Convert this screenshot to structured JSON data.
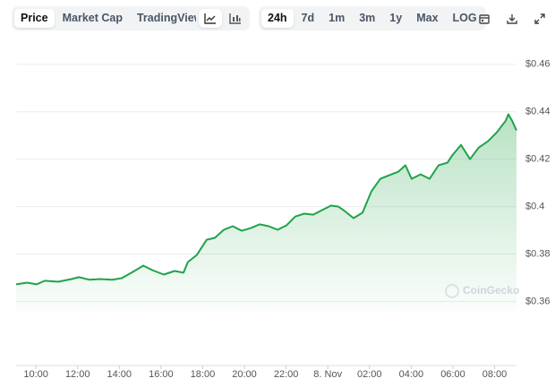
{
  "toolbar": {
    "views": [
      "Price",
      "Market Cap",
      "TradingView"
    ],
    "ranges": [
      "24h",
      "7d",
      "1m",
      "3m",
      "1y",
      "Max",
      "LOG"
    ]
  },
  "chart_data": {
    "type": "area",
    "watermark": "CoinGecko",
    "color": "#1fa34a",
    "x": [
      9.05,
      9.57,
      10.04,
      10.42,
      11.07,
      11.71,
      12.06,
      12.57,
      13.09,
      13.64,
      14.12,
      14.72,
      15.15,
      15.58,
      16.13,
      16.65,
      17.08,
      17.29,
      17.72,
      18.19,
      18.58,
      19.01,
      19.44,
      19.87,
      20.3,
      20.73,
      21.16,
      21.59,
      22.02,
      22.44,
      22.87,
      23.3,
      23.73,
      24.16,
      24.5,
      24.81,
      25.23,
      25.66,
      26.09,
      26.52,
      26.95,
      27.38,
      27.72,
      28.02,
      28.45,
      28.88,
      29.31,
      29.74,
      29.96,
      30.39,
      30.82,
      31.24,
      31.67,
      32.1,
      32.53,
      32.66,
      32.84,
      33.05
    ],
    "values": [
      0.3672,
      0.3679,
      0.3672,
      0.3687,
      0.3683,
      0.3694,
      0.3702,
      0.3691,
      0.3694,
      0.3691,
      0.3698,
      0.3728,
      0.3751,
      0.3732,
      0.3713,
      0.3728,
      0.3721,
      0.3766,
      0.3796,
      0.386,
      0.3868,
      0.3902,
      0.3917,
      0.3898,
      0.3909,
      0.3925,
      0.3917,
      0.3902,
      0.3921,
      0.3958,
      0.397,
      0.3966,
      0.3985,
      0.4004,
      0.4,
      0.3981,
      0.3951,
      0.3974,
      0.4064,
      0.4117,
      0.4132,
      0.4147,
      0.4174,
      0.4117,
      0.4136,
      0.4117,
      0.4174,
      0.4185,
      0.4215,
      0.426,
      0.42,
      0.4249,
      0.4275,
      0.4313,
      0.4362,
      0.4389,
      0.4362,
      0.4321
    ],
    "xlim": [
      9.05,
      33.05
    ],
    "ylim": [
      0.356,
      0.469
    ],
    "xticks": [
      {
        "value": 10,
        "label": "10:00"
      },
      {
        "value": 12,
        "label": "12:00"
      },
      {
        "value": 14,
        "label": "14:00"
      },
      {
        "value": 16,
        "label": "16:00"
      },
      {
        "value": 18,
        "label": "18:00"
      },
      {
        "value": 20,
        "label": "20:00"
      },
      {
        "value": 22,
        "label": "22:00"
      },
      {
        "value": 24,
        "label": "8. Nov"
      },
      {
        "value": 26,
        "label": "02:00"
      },
      {
        "value": 28,
        "label": "04:00"
      },
      {
        "value": 30,
        "label": "06:00"
      },
      {
        "value": 32,
        "label": "08:00"
      }
    ],
    "yticks": [
      {
        "value": 0.36,
        "label": "$0.36"
      },
      {
        "value": 0.38,
        "label": "$0.38"
      },
      {
        "value": 0.4,
        "label": "$0.4"
      },
      {
        "value": 0.42,
        "label": "$0.42"
      },
      {
        "value": 0.44,
        "label": "$0.44"
      },
      {
        "value": 0.46,
        "label": "$0.46"
      }
    ],
    "grid": true
  }
}
